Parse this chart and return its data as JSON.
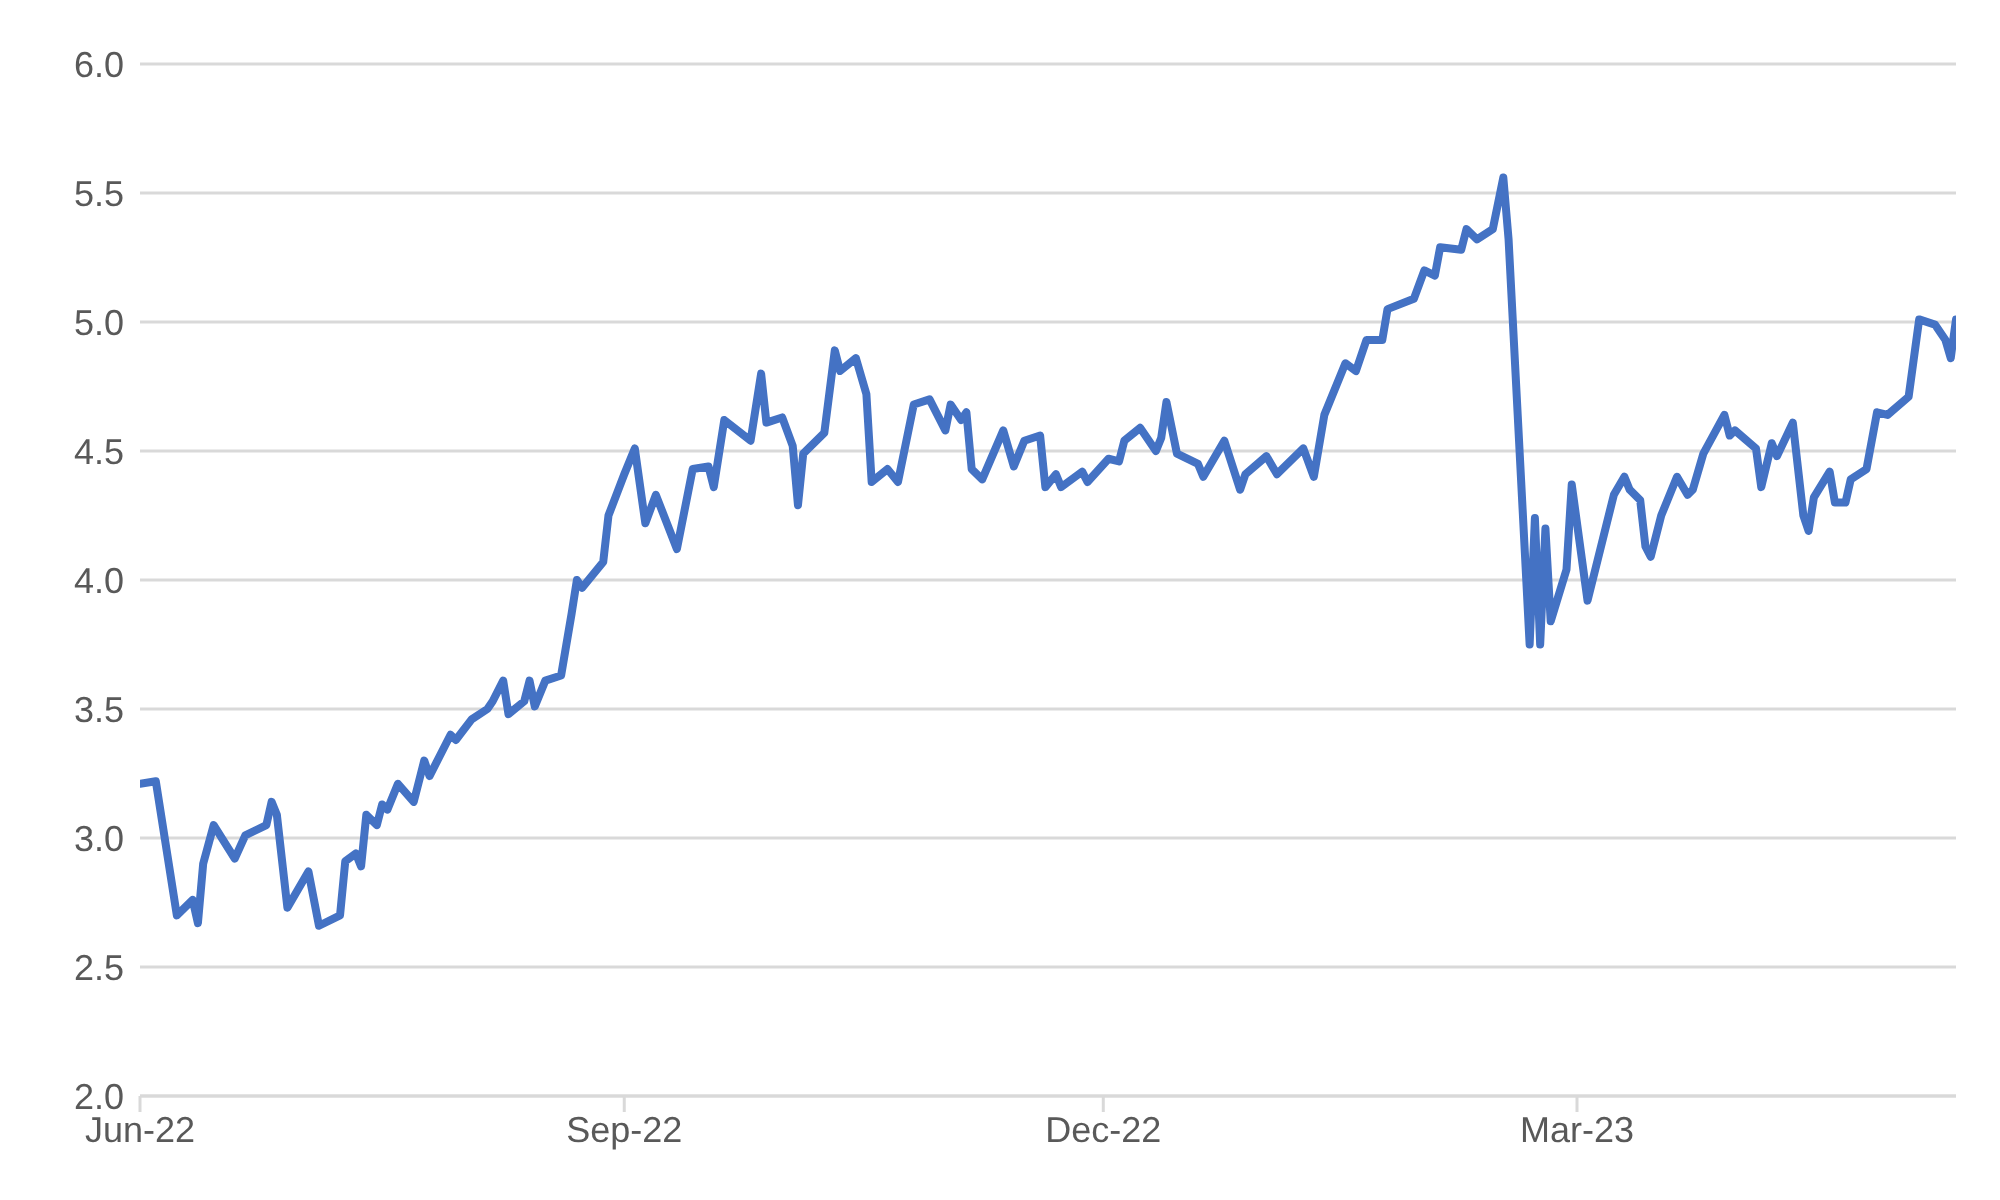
{
  "chart_data": {
    "type": "line",
    "x": [
      "2022-06-01",
      "2022-06-04",
      "2022-06-08",
      "2022-06-11",
      "2022-06-12",
      "2022-06-13",
      "2022-06-15",
      "2022-06-19",
      "2022-06-21",
      "2022-06-25",
      "2022-06-26",
      "2022-06-27",
      "2022-06-29",
      "2022-07-03",
      "2022-07-05",
      "2022-07-09",
      "2022-07-10",
      "2022-07-12",
      "2022-07-13",
      "2022-07-14",
      "2022-07-16",
      "2022-07-17",
      "2022-07-18",
      "2022-07-20",
      "2022-07-23",
      "2022-07-25",
      "2022-07-26",
      "2022-07-30",
      "2022-07-31",
      "2022-08-03",
      "2022-08-06",
      "2022-08-07",
      "2022-08-09",
      "2022-08-10",
      "2022-08-13",
      "2022-08-14",
      "2022-08-15",
      "2022-08-17",
      "2022-08-20",
      "2022-08-22",
      "2022-08-23",
      "2022-08-24",
      "2022-08-28",
      "2022-08-29",
      "2022-09-01",
      "2022-09-03",
      "2022-09-05",
      "2022-09-07",
      "2022-09-11",
      "2022-09-14",
      "2022-09-17",
      "2022-09-18",
      "2022-09-20",
      "2022-09-25",
      "2022-09-27",
      "2022-09-28",
      "2022-10-01",
      "2022-10-03",
      "2022-10-04",
      "2022-10-05",
      "2022-10-09",
      "2022-10-11",
      "2022-10-12",
      "2022-10-15",
      "2022-10-17",
      "2022-10-18",
      "2022-10-21",
      "2022-10-23",
      "2022-10-26",
      "2022-10-29",
      "2022-11-01",
      "2022-11-02",
      "2022-11-04",
      "2022-11-05",
      "2022-11-06",
      "2022-11-08",
      "2022-11-12",
      "2022-11-14",
      "2022-11-16",
      "2022-11-19",
      "2022-11-20",
      "2022-11-22",
      "2022-11-23",
      "2022-11-27",
      "2022-11-28",
      "2022-12-02",
      "2022-12-04",
      "2022-12-05",
      "2022-12-08",
      "2022-12-11",
      "2022-12-12",
      "2022-12-13",
      "2022-12-15",
      "2022-12-19",
      "2022-12-20",
      "2022-12-24",
      "2022-12-27",
      "2022-12-28",
      "2023-01-01",
      "2023-01-03",
      "2023-01-08",
      "2023-01-10",
      "2023-01-12",
      "2023-01-16",
      "2023-01-18",
      "2023-01-20",
      "2023-01-23",
      "2023-01-24",
      "2023-01-29",
      "2023-01-31",
      "2023-02-02",
      "2023-02-03",
      "2023-02-07",
      "2023-02-08",
      "2023-02-10",
      "2023-02-13",
      "2023-02-15",
      "2023-02-16",
      "2023-02-20",
      "2023-02-21",
      "2023-02-22",
      "2023-02-23",
      "2023-02-24",
      "2023-02-27",
      "2023-02-28",
      "2023-03-03",
      "2023-03-08",
      "2023-03-10",
      "2023-03-11",
      "2023-03-13",
      "2023-03-14",
      "2023-03-15",
      "2023-03-17",
      "2023-03-20",
      "2023-03-22",
      "2023-03-23",
      "2023-03-25",
      "2023-03-29",
      "2023-03-30",
      "2023-03-31",
      "2023-04-04",
      "2023-04-05",
      "2023-04-07",
      "2023-04-08",
      "2023-04-11",
      "2023-04-13",
      "2023-04-14",
      "2023-04-15",
      "2023-04-18",
      "2023-04-19",
      "2023-04-21",
      "2023-04-22",
      "2023-04-25",
      "2023-04-27",
      "2023-04-29",
      "2023-05-03",
      "2023-05-05",
      "2023-05-08",
      "2023-05-10",
      "2023-05-11",
      "2023-05-12"
    ],
    "series": [
      {
        "color": "#4472c4",
        "values": [
          3.21,
          3.22,
          2.7,
          2.76,
          2.67,
          2.9,
          3.05,
          2.92,
          3.01,
          3.05,
          3.14,
          3.09,
          2.73,
          2.87,
          2.66,
          2.7,
          2.91,
          2.94,
          2.89,
          3.09,
          3.05,
          3.13,
          3.11,
          3.21,
          3.14,
          3.3,
          3.24,
          3.4,
          3.38,
          3.46,
          3.5,
          3.53,
          3.61,
          3.48,
          3.53,
          3.61,
          3.51,
          3.61,
          3.63,
          3.87,
          4.0,
          3.97,
          4.07,
          4.25,
          4.41,
          4.51,
          4.22,
          4.33,
          4.12,
          4.43,
          4.44,
          4.36,
          4.62,
          4.54,
          4.8,
          4.61,
          4.63,
          4.52,
          4.29,
          4.49,
          4.57,
          4.89,
          4.81,
          4.86,
          4.72,
          4.38,
          4.43,
          4.38,
          4.68,
          4.7,
          4.58,
          4.68,
          4.62,
          4.65,
          4.43,
          4.39,
          4.58,
          4.44,
          4.54,
          4.56,
          4.36,
          4.41,
          4.36,
          4.42,
          4.38,
          4.47,
          4.46,
          4.54,
          4.59,
          4.5,
          4.55,
          4.69,
          4.49,
          4.45,
          4.4,
          4.54,
          4.35,
          4.41,
          4.48,
          4.41,
          4.51,
          4.4,
          4.64,
          4.84,
          4.81,
          4.93,
          4.93,
          5.05,
          5.09,
          5.2,
          5.18,
          5.29,
          5.28,
          5.36,
          5.32,
          5.36,
          5.56,
          5.32,
          3.75,
          4.24,
          3.75,
          4.2,
          3.84,
          4.04,
          4.37,
          3.92,
          4.33,
          4.4,
          4.35,
          4.31,
          4.13,
          4.09,
          4.25,
          4.4,
          4.33,
          4.35,
          4.49,
          4.64,
          4.56,
          4.58,
          4.51,
          4.36,
          4.53,
          4.48,
          4.61,
          4.25,
          4.19,
          4.32,
          4.42,
          4.3,
          4.3,
          4.39,
          4.43,
          4.65,
          4.64,
          4.71,
          5.01,
          4.99,
          4.93,
          4.86,
          5.01
        ]
      }
    ],
    "xlim": [
      "2022-06-01",
      "2023-05-12"
    ],
    "xticks": [
      {
        "value": "2022-06-01",
        "label": "Jun-22"
      },
      {
        "value": "2022-09-01",
        "label": "Sep-22"
      },
      {
        "value": "2022-12-01",
        "label": "Dec-22"
      },
      {
        "value": "2023-03-01",
        "label": "Mar-23"
      }
    ],
    "ylim": [
      2,
      6
    ],
    "yticks": [
      {
        "value": 2,
        "label": "2.0"
      },
      {
        "value": 2.5,
        "label": "2.5"
      },
      {
        "value": 3,
        "label": "3.0"
      },
      {
        "value": 3.5,
        "label": "3.5"
      },
      {
        "value": 4,
        "label": "4.0"
      },
      {
        "value": 4.5,
        "label": "4.5"
      },
      {
        "value": 5,
        "label": "5.0"
      },
      {
        "value": 5.5,
        "label": "5.5"
      },
      {
        "value": 6,
        "label": "6.0"
      }
    ],
    "grid": "y",
    "legend": false,
    "marker": "none",
    "line_style": "solid"
  }
}
